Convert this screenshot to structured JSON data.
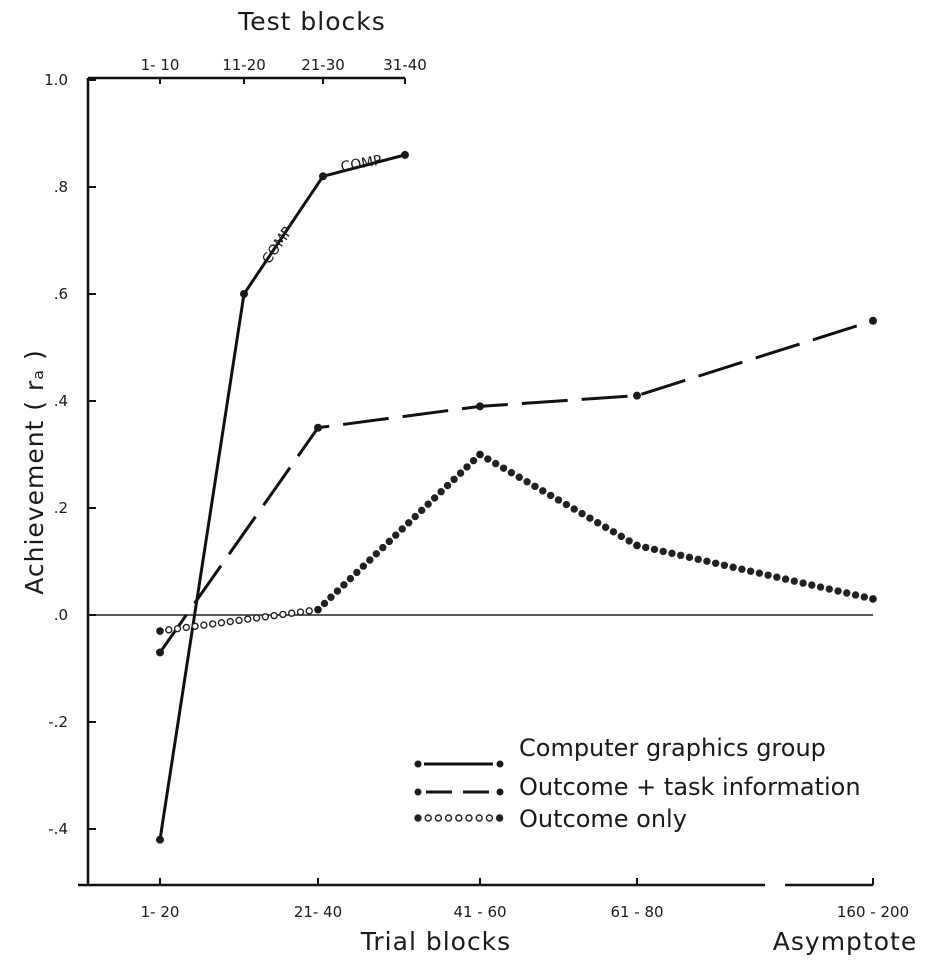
{
  "chart_data": {
    "type": "line",
    "top_axis": {
      "title": "Test blocks",
      "tick_labels": [
        "1- 10",
        "11-20",
        "21-30",
        "31-40"
      ]
    },
    "x_axis": {
      "title": "Trial blocks",
      "secondary_title": "Asymptote",
      "tick_labels": [
        "1- 20",
        "21- 40",
        "41 - 60",
        "61 - 80",
        "160 - 200"
      ]
    },
    "y_axis": {
      "title": "Achievement ( rₐ )",
      "tick_labels": [
        "1.0",
        ".8",
        ".6",
        ".4",
        ".2",
        ".0",
        "-.2",
        "-.4"
      ],
      "ylim": [
        -0.5,
        1.0
      ]
    },
    "grid": false,
    "legend_position": "bottom-right",
    "series": [
      {
        "name": "Computer graphics group",
        "style": "solid",
        "x": [
          "1- 20",
          "11-20",
          "21-30",
          "31-40"
        ],
        "values": [
          -0.42,
          0.6,
          0.82,
          0.86
        ],
        "annotations": [
          "COMP",
          "COMP"
        ]
      },
      {
        "name": "Outcome + task information",
        "style": "dashed",
        "x": [
          "1- 20",
          "21- 40",
          "41 - 60",
          "61 - 80",
          "160 - 200"
        ],
        "values": [
          -0.07,
          0.35,
          0.39,
          0.41,
          0.55
        ]
      },
      {
        "name": "Outcome only",
        "style": "dotted",
        "x": [
          "1- 20",
          "21- 40",
          "41 - 60",
          "61 - 80",
          "160 - 200"
        ],
        "values": [
          -0.03,
          0.01,
          0.3,
          0.13,
          0.03
        ]
      }
    ]
  },
  "colors": {
    "ink": "#1a1a1a",
    "background": "#ffffff"
  }
}
